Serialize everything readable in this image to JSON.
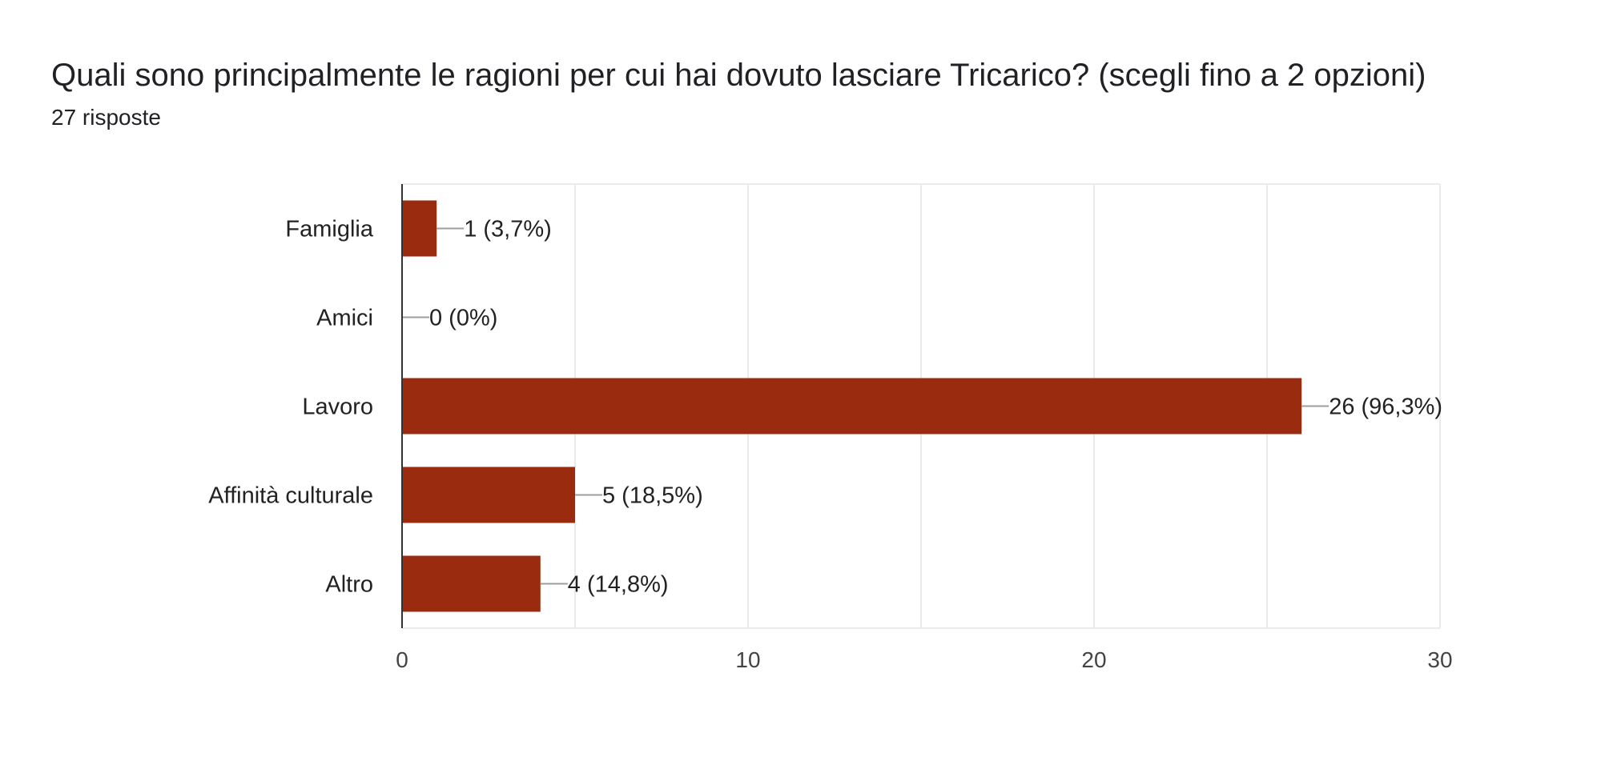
{
  "header": {
    "title": "Quali sono principalmente le ragioni per cui hai dovuto lasciare Tricarico? (scegli fino a 2 opzioni)",
    "responses": "27 risposte"
  },
  "chart_data": {
    "type": "bar",
    "orientation": "horizontal",
    "categories": [
      "Famiglia",
      "Amici",
      "Lavoro",
      "Affinità culturale",
      "Altro"
    ],
    "values": [
      1,
      0,
      26,
      5,
      4
    ],
    "data_labels": [
      "1 (3,7%)",
      "0 (0%)",
      "26 (96,3%)",
      "5 (18,5%)",
      "4 (14,8%)"
    ],
    "xlim": [
      0,
      30
    ],
    "x_ticks": [
      0,
      10,
      20,
      30
    ],
    "grid": true,
    "bar_color": "#9a2b0e",
    "gridline_color": "#ebebeb",
    "axis_color": "#333333",
    "leader_color": "#9e9e9e"
  }
}
